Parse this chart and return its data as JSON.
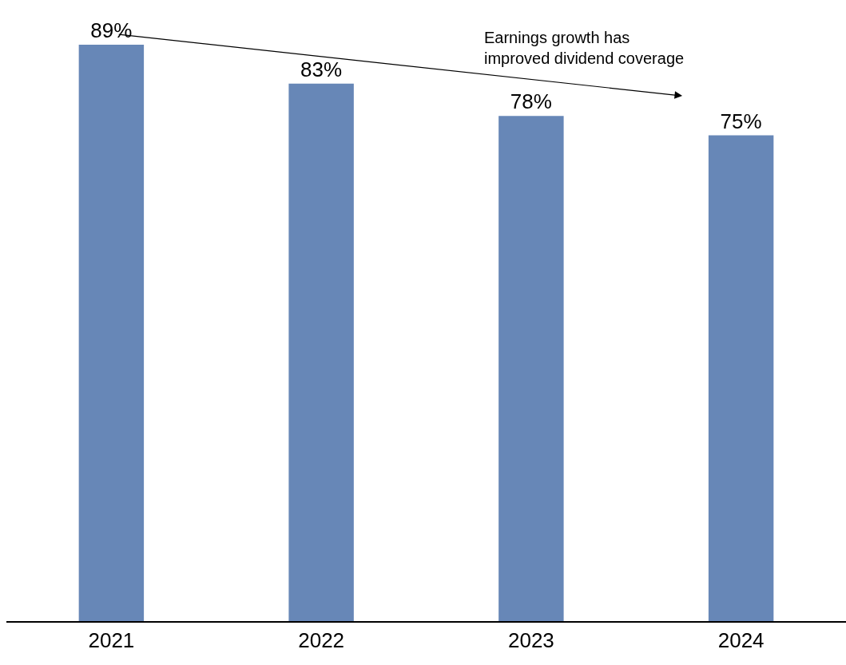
{
  "chart_data": {
    "type": "bar",
    "categories": [
      "2021",
      "2022",
      "2023",
      "2024"
    ],
    "values": [
      89,
      83,
      78,
      75
    ],
    "value_labels": [
      "89%",
      "83%",
      "78%",
      "75%"
    ],
    "color": "#6787b7",
    "tick_labels": "x",
    "legend": false,
    "annotations": [
      "Earnings growth has improved dividend coverage"
    ]
  }
}
